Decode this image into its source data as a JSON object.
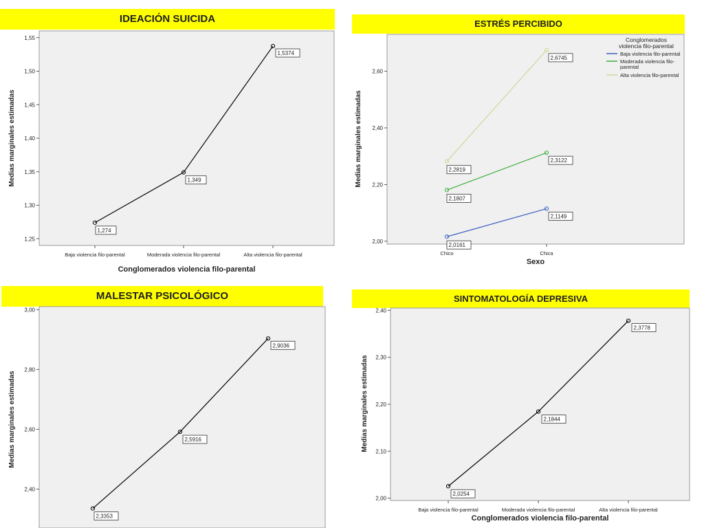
{
  "chart_data": [
    {
      "type": "line",
      "title": "IDEACIÓN SUICIDA",
      "xlabel": "Conglomerados violencia filo-parental",
      "ylabel": "Medias marginales estimadas",
      "categories": [
        "Baja violencia filo-parental",
        "Moderada violencia filo-parental",
        "Alta violencia filo-parental"
      ],
      "yticks": [
        "1,25",
        "1,30",
        "1,35",
        "1,40",
        "1,45",
        "1,50",
        "1,55"
      ],
      "ylim": [
        1.24,
        1.56
      ],
      "series": [
        {
          "values": [
            1.274,
            1.349,
            1.5374
          ],
          "labels": [
            "1,274",
            "1,349",
            "1,5374"
          ],
          "color": "#000000"
        }
      ]
    },
    {
      "type": "line",
      "title": "ESTRÉS PERCIBIDO",
      "xlabel": "Sexo",
      "ylabel": "Medias marginales estimadas",
      "categories": [
        "Chico",
        "Chica"
      ],
      "yticks": [
        "2,00",
        "2,20",
        "2,40",
        "2,60"
      ],
      "ylim": [
        1.99,
        2.73
      ],
      "legend_title": [
        "Conglomerados",
        "violencia filo-parental"
      ],
      "series": [
        {
          "name": "Baja violencia filo-parental",
          "values": [
            2.0161,
            2.1149
          ],
          "labels": [
            "2,0161",
            "2,1149"
          ],
          "color": "#3b5fc0"
        },
        {
          "name": "Moderada violencia filo-parental",
          "values": [
            2.1807,
            2.3122
          ],
          "labels": [
            "2,1807",
            "2,3122"
          ],
          "color": "#3fae3f"
        },
        {
          "name": "Alta violencia filo-parental",
          "values": [
            2.2819,
            2.6745
          ],
          "labels": [
            "2,2819",
            "2,6745"
          ],
          "color": "#d4d49a"
        }
      ]
    },
    {
      "type": "line",
      "title": "MALESTAR PSICOLÓGICO",
      "xlabel": "",
      "ylabel": "Medias marginales estimadas",
      "categories": [
        "",
        "",
        ""
      ],
      "yticks": [
        "2,40",
        "2,60",
        "2,80",
        "3,00"
      ],
      "ylim": [
        2.27,
        3.01
      ],
      "series": [
        {
          "values": [
            2.3353,
            2.5916,
            2.9036
          ],
          "labels": [
            "2,3353",
            "2,5916",
            "2,9036"
          ],
          "color": "#000000"
        }
      ]
    },
    {
      "type": "line",
      "title": "SINTOMATOLOGÍA DEPRESIVA",
      "xlabel": "Conglomerados violencia filo-parental",
      "ylabel": "Medias marginales estimadas",
      "categories": [
        "Baja violencia filo-parental",
        "Moderada violencia filo-parental",
        "Alta violencia filo-parental"
      ],
      "yticks": [
        "2,00",
        "2,10",
        "2,20",
        "2,30",
        "2,40"
      ],
      "ylim": [
        1.995,
        2.405
      ],
      "series": [
        {
          "values": [
            2.0254,
            2.1844,
            2.3778
          ],
          "labels": [
            "2,0254",
            "2,1844",
            "2,3778"
          ],
          "color": "#000000"
        }
      ]
    }
  ]
}
